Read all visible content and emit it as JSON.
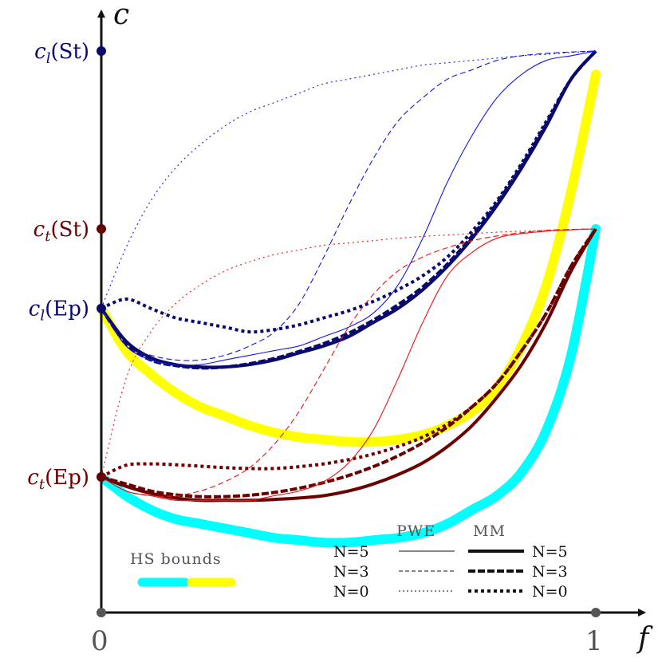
{
  "chart_data": {
    "type": "line",
    "xlabel": "f",
    "ylabel": "c",
    "x_ticks": [
      "0",
      "1"
    ],
    "y_markers": [
      {
        "label": "c_l(St)",
        "sub": "l",
        "paren": "(St)",
        "value": 1.0,
        "color": "#0a0a6e"
      },
      {
        "label": "c_t(St)",
        "sub": "t",
        "paren": "(St)",
        "value": 0.62,
        "color": "#6b0000"
      },
      {
        "label": "c_l(Ep)",
        "sub": "l",
        "paren": "(Ep)",
        "value": 0.45,
        "color": "#0a0a6e"
      },
      {
        "label": "c_t(Ep)",
        "sub": "t",
        "paren": "(Ep)",
        "value": 0.09,
        "color": "#6b0000"
      }
    ],
    "colors": {
      "pwe_longitudinal": "#1515e6",
      "pwe_transverse": "#ee1111",
      "mm_longitudinal": "#0a0a6e",
      "mm_transverse": "#6b0000",
      "hs_lower": "#00ffff",
      "hs_upper": "#ffff00"
    },
    "x": [
      0,
      0.05,
      0.1,
      0.15,
      0.2,
      0.25,
      0.3,
      0.35,
      0.4,
      0.45,
      0.5,
      0.55,
      0.6,
      0.65,
      0.7,
      0.75,
      0.8,
      0.85,
      0.9,
      0.95,
      1.0
    ],
    "series": [
      {
        "group": "PWE",
        "mode": "l",
        "N": 5,
        "values": [
          0.45,
          0.37,
          0.34,
          0.33,
          0.33,
          0.34,
          0.35,
          0.36,
          0.37,
          0.39,
          0.41,
          0.44,
          0.5,
          0.6,
          0.72,
          0.82,
          0.9,
          0.95,
          0.98,
          0.99,
          1.0
        ]
      },
      {
        "group": "PWE",
        "mode": "l",
        "N": 3,
        "values": [
          0.45,
          0.37,
          0.35,
          0.34,
          0.34,
          0.35,
          0.37,
          0.4,
          0.46,
          0.56,
          0.67,
          0.77,
          0.85,
          0.9,
          0.94,
          0.96,
          0.98,
          0.99,
          0.995,
          0.998,
          1.0
        ]
      },
      {
        "group": "PWE",
        "mode": "l",
        "N": 0,
        "values": [
          0.45,
          0.58,
          0.68,
          0.75,
          0.8,
          0.84,
          0.87,
          0.89,
          0.91,
          0.93,
          0.94,
          0.95,
          0.96,
          0.97,
          0.975,
          0.98,
          0.985,
          0.99,
          0.993,
          0.997,
          1.0
        ]
      },
      {
        "group": "PWE",
        "mode": "t",
        "N": 5,
        "values": [
          0.09,
          0.06,
          0.05,
          0.04,
          0.04,
          0.04,
          0.04,
          0.05,
          0.06,
          0.08,
          0.12,
          0.19,
          0.3,
          0.42,
          0.52,
          0.57,
          0.6,
          0.61,
          0.615,
          0.618,
          0.62
        ]
      },
      {
        "group": "PWE",
        "mode": "t",
        "N": 3,
        "values": [
          0.09,
          0.06,
          0.05,
          0.05,
          0.06,
          0.08,
          0.11,
          0.16,
          0.23,
          0.32,
          0.41,
          0.48,
          0.53,
          0.56,
          0.58,
          0.595,
          0.605,
          0.612,
          0.617,
          0.619,
          0.62
        ]
      },
      {
        "group": "PWE",
        "mode": "t",
        "N": 0,
        "values": [
          0.09,
          0.3,
          0.4,
          0.46,
          0.5,
          0.53,
          0.55,
          0.565,
          0.575,
          0.585,
          0.59,
          0.595,
          0.6,
          0.604,
          0.607,
          0.61,
          0.613,
          0.615,
          0.617,
          0.619,
          0.62
        ]
      },
      {
        "group": "MM",
        "mode": "l",
        "N": 5,
        "values": [
          0.45,
          0.38,
          0.345,
          0.33,
          0.325,
          0.325,
          0.33,
          0.34,
          0.355,
          0.37,
          0.39,
          0.42,
          0.45,
          0.49,
          0.54,
          0.6,
          0.67,
          0.75,
          0.84,
          0.94,
          1.0
        ]
      },
      {
        "group": "MM",
        "mode": "l",
        "N": 3,
        "values": [
          0.45,
          0.375,
          0.34,
          0.328,
          0.323,
          0.325,
          0.332,
          0.343,
          0.358,
          0.375,
          0.397,
          0.425,
          0.458,
          0.496,
          0.545,
          0.605,
          0.675,
          0.755,
          0.845,
          0.94,
          1.0
        ]
      },
      {
        "group": "MM",
        "mode": "l",
        "N": 0,
        "values": [
          0.45,
          0.47,
          0.45,
          0.43,
          0.42,
          0.41,
          0.4,
          0.405,
          0.415,
          0.43,
          0.445,
          0.465,
          0.49,
          0.52,
          0.56,
          0.615,
          0.68,
          0.76,
          0.85,
          0.94,
          1.0
        ]
      },
      {
        "group": "MM",
        "mode": "t",
        "N": 5,
        "values": [
          0.09,
          0.07,
          0.055,
          0.045,
          0.04,
          0.04,
          0.04,
          0.042,
          0.045,
          0.05,
          0.06,
          0.075,
          0.095,
          0.12,
          0.155,
          0.2,
          0.26,
          0.33,
          0.42,
          0.53,
          0.62
        ]
      },
      {
        "group": "MM",
        "mode": "t",
        "N": 3,
        "values": [
          0.09,
          0.075,
          0.06,
          0.052,
          0.048,
          0.048,
          0.051,
          0.057,
          0.066,
          0.078,
          0.093,
          0.112,
          0.135,
          0.163,
          0.197,
          0.24,
          0.29,
          0.36,
          0.44,
          0.54,
          0.62
        ]
      },
      {
        "group": "MM",
        "mode": "t",
        "N": 0,
        "values": [
          0.09,
          0.115,
          0.118,
          0.116,
          0.113,
          0.11,
          0.108,
          0.108,
          0.112,
          0.118,
          0.127,
          0.139,
          0.155,
          0.175,
          0.203,
          0.24,
          0.29,
          0.36,
          0.44,
          0.54,
          0.62
        ]
      },
      {
        "group": "HS",
        "bound": "lower",
        "values": [
          0.09,
          0.05,
          0.02,
          0.0,
          -0.01,
          -0.02,
          -0.03,
          -0.04,
          -0.045,
          -0.05,
          -0.05,
          -0.045,
          -0.04,
          -0.03,
          -0.01,
          0.02,
          0.05,
          0.1,
          0.19,
          0.35,
          0.62
        ]
      },
      {
        "group": "HS",
        "bound": "upper",
        "values": [
          0.45,
          0.36,
          0.31,
          0.27,
          0.24,
          0.22,
          0.2,
          0.185,
          0.175,
          0.17,
          0.165,
          0.165,
          0.17,
          0.18,
          0.2,
          0.23,
          0.28,
          0.37,
          0.5,
          0.7,
          0.95
        ]
      }
    ],
    "legend": {
      "hs_title": "HS  bounds",
      "pwe_title": "PWE",
      "mm_title": "MM",
      "n_labels": [
        "N=5",
        "N=3",
        "N=0"
      ]
    },
    "grid": false,
    "xlim": [
      0,
      1
    ],
    "ylim": [
      -0.35,
      1.05
    ]
  }
}
